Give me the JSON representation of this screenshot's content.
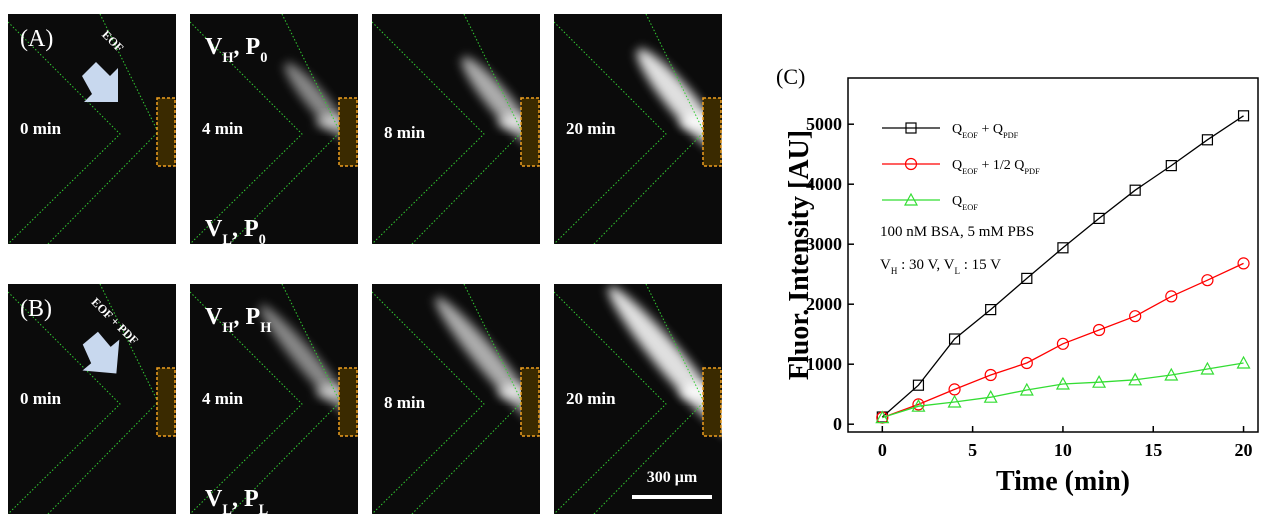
{
  "panel_a": {
    "label": "(A)",
    "flow_label": "EOF",
    "times": [
      "0 min",
      "4 min",
      "8 min",
      "20 min"
    ],
    "top_condition": [
      "V",
      "H",
      ", P",
      "0"
    ],
    "bottom_condition": [
      "V",
      "L",
      ", P",
      "0"
    ]
  },
  "panel_b": {
    "label": "(B)",
    "flow_label": "EOF + PDF",
    "times": [
      "0 min",
      "4 min",
      "8 min",
      "20 min"
    ],
    "top_condition": [
      "V",
      "H",
      ", P",
      "H"
    ],
    "bottom_condition": [
      "V",
      "L",
      ", P",
      "L"
    ],
    "scale_bar": "300 μm"
  },
  "chart_data": {
    "type": "line",
    "panel_label": "(C)",
    "x_label": "Time (min)",
    "y_label": "Fluor. Intensity [AU]",
    "x": [
      0,
      2,
      4,
      6,
      8,
      10,
      12,
      14,
      16,
      18,
      20
    ],
    "series": [
      {
        "name": [
          "Q",
          "EOF",
          " + Q",
          "PDF"
        ],
        "color": "#000000",
        "marker": "square",
        "values": [
          120,
          650,
          1420,
          1910,
          2430,
          2940,
          3430,
          3900,
          4310,
          4740,
          5140
        ]
      },
      {
        "name": [
          "Q",
          "EOF",
          " + 1/2 Q",
          "PDF"
        ],
        "color": "#ff0000",
        "marker": "circle",
        "values": [
          110,
          330,
          580,
          820,
          1020,
          1340,
          1570,
          1800,
          2130,
          2400,
          2680
        ]
      },
      {
        "name": [
          "Q",
          "EOF"
        ],
        "color": "#33dd33",
        "marker": "triangle",
        "values": [
          110,
          300,
          370,
          450,
          570,
          670,
          700,
          740,
          820,
          920,
          1020
        ]
      }
    ],
    "annotations": [
      [
        "100 nM BSA, 5 mM PBS"
      ],
      [
        "V",
        "H",
        " : 30 V, V",
        "L",
        " : 15 V"
      ]
    ],
    "xlim": [
      -1.9,
      20.8
    ],
    "ylim": [
      -130,
      5770
    ],
    "xticks": [
      0,
      5,
      10,
      15,
      20
    ],
    "yticks": [
      0,
      1000,
      2000,
      3000,
      4000,
      5000
    ]
  }
}
